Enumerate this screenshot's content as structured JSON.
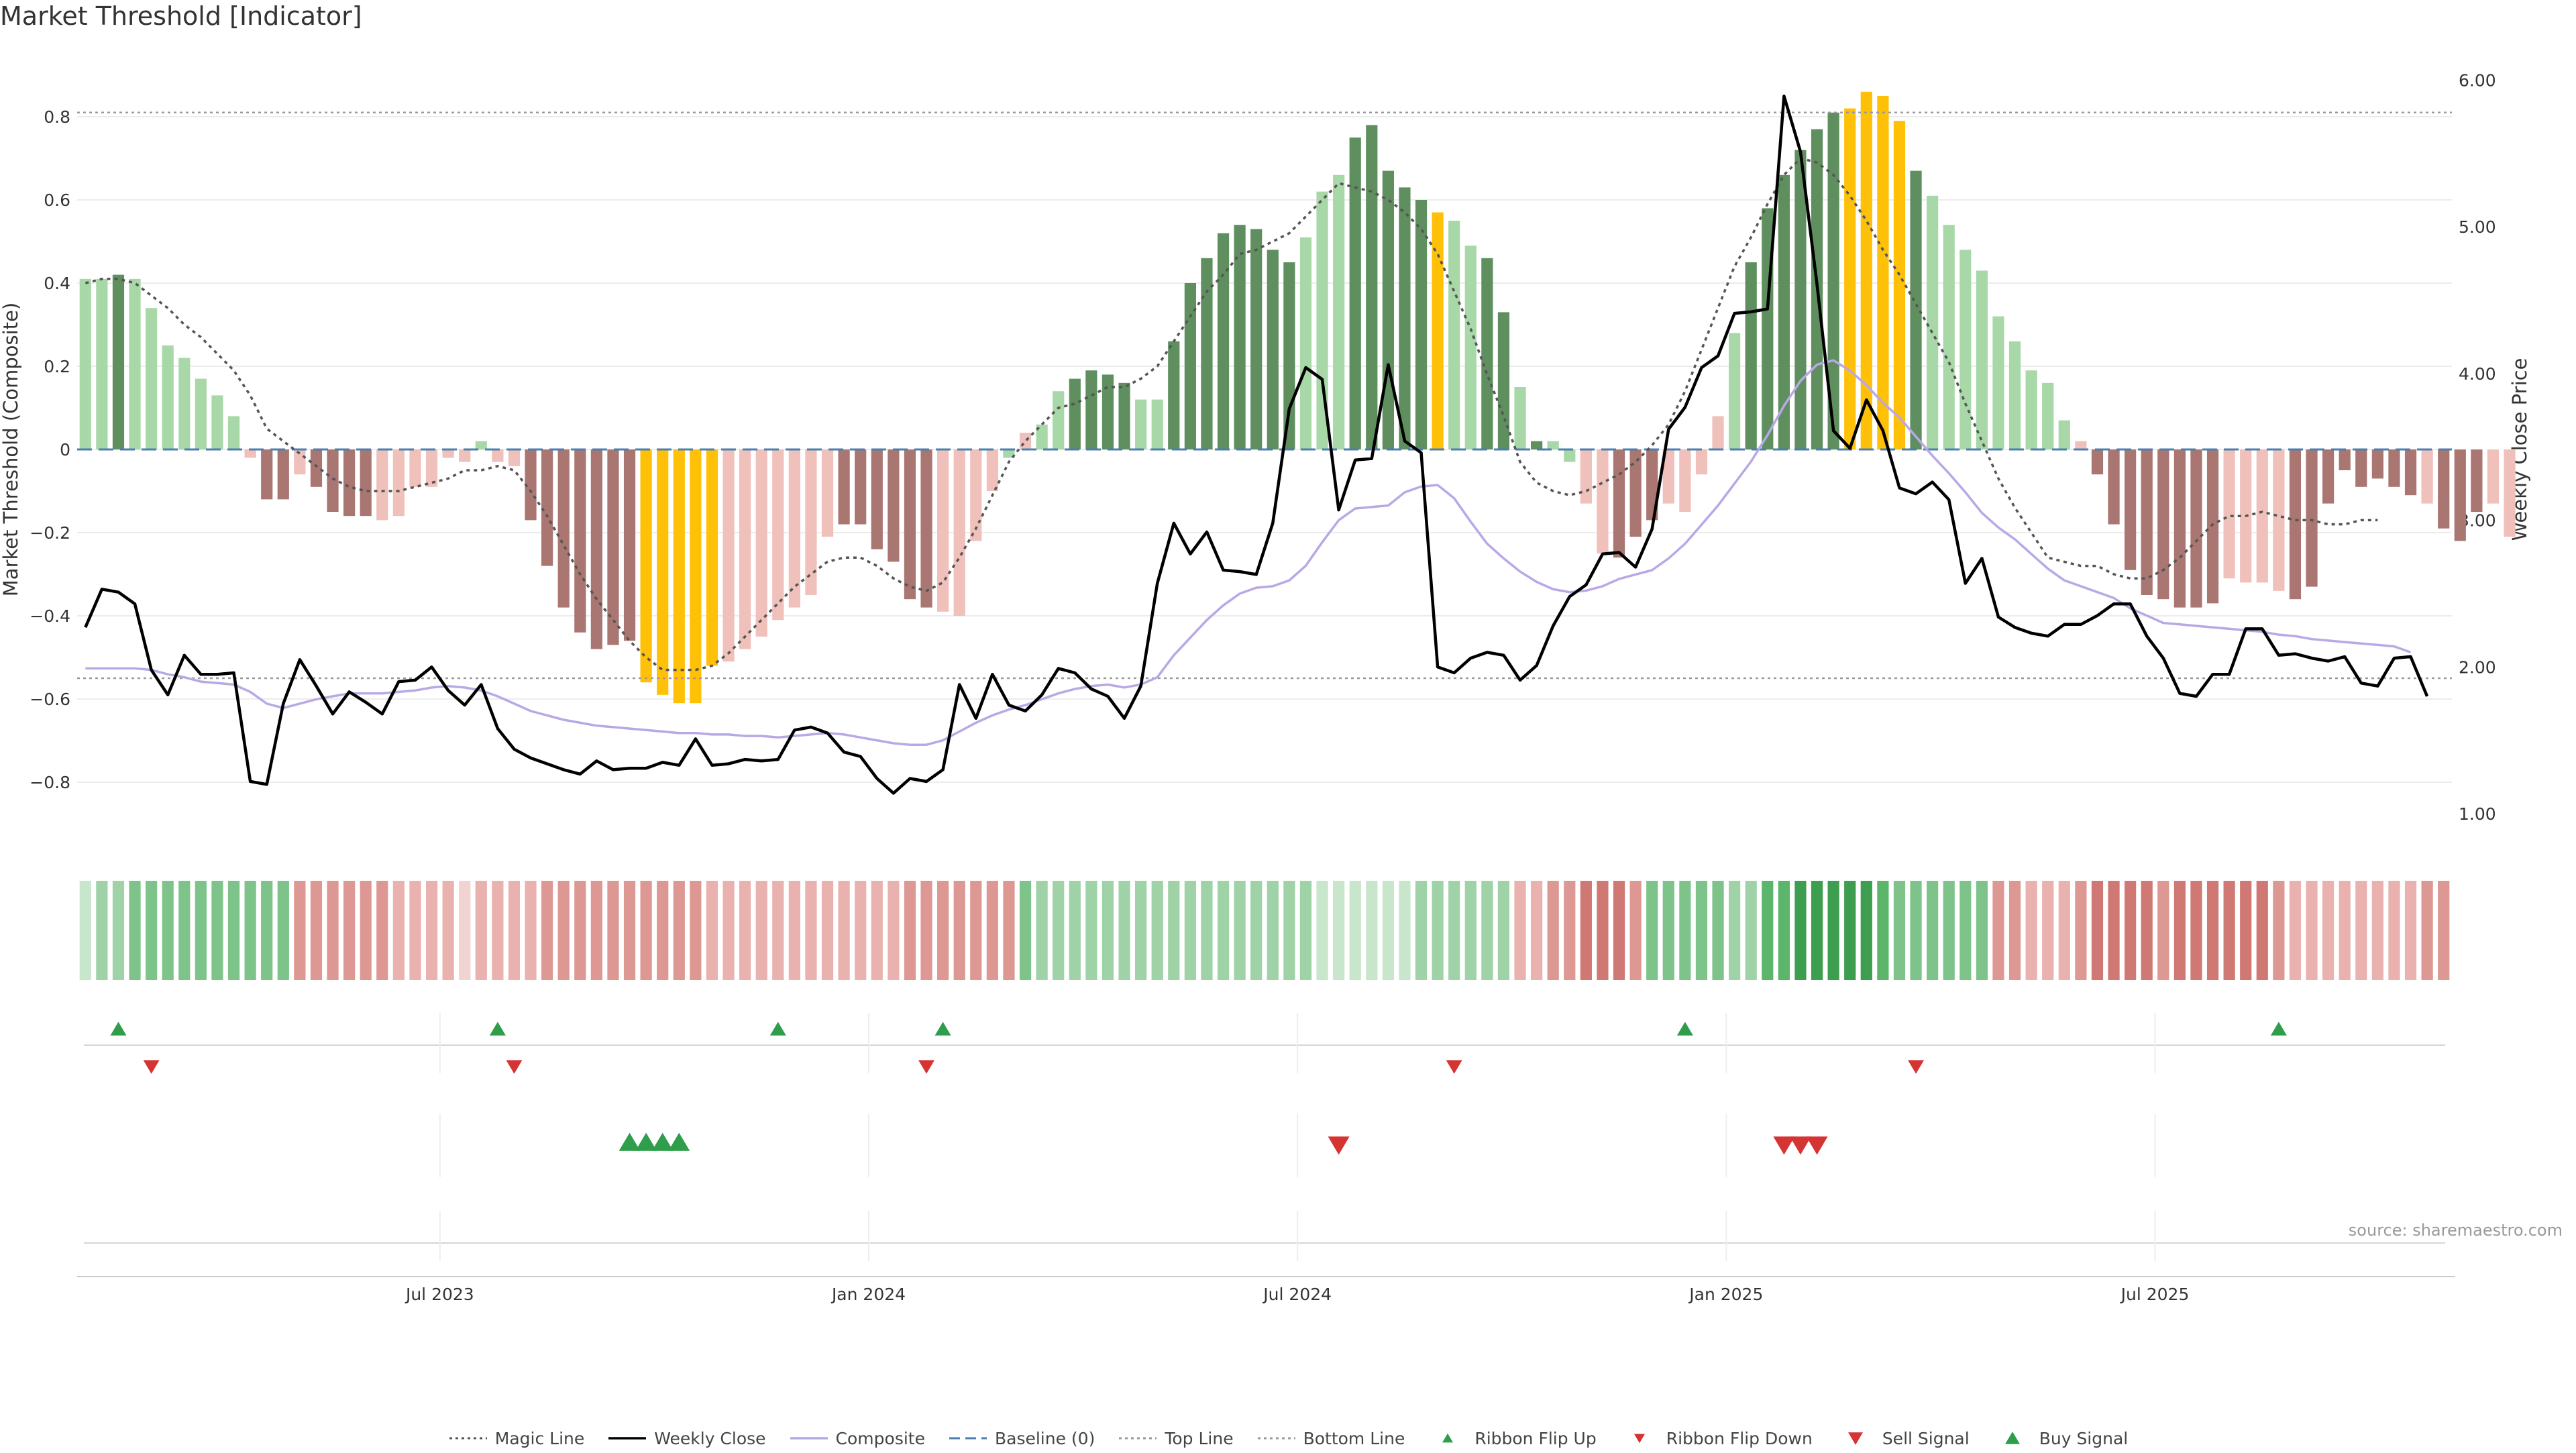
{
  "title": "Market Threshold [Indicator]",
  "source": "source: sharemaestro.com",
  "colors": {
    "dark_green": "#5f8f5f",
    "light_green": "#a8d8a8",
    "dark_red": "#a97672",
    "light_red": "#f0c0bb",
    "gold": "#ffc107",
    "weekly_close": "#000000",
    "composite": "#b9a8e6",
    "magic_line": "#555555",
    "baseline": "#4a7fb0",
    "buy": "#2e9e4a",
    "sell": "#d63333"
  },
  "chart_data": {
    "type": "bar",
    "ylabel_left": "Market Threshold (Composite)",
    "ylabel_right": "Weekly Close Price",
    "ylim_left": [
      -0.95,
      0.95
    ],
    "ylim_right": [
      0.8,
      6.2
    ],
    "left_ticks": [
      "0.8",
      "0.6",
      "0.4",
      "0.2",
      "0",
      "−0.2",
      "−0.4",
      "−0.6",
      "−0.8"
    ],
    "right_ticks": [
      "6.00",
      "5.00",
      "4.00",
      "3.00",
      "2.00",
      "1.00"
    ],
    "x_ticks": [
      "Jul 2023",
      "Jan 2024",
      "Jul 2024",
      "Jan 2025",
      "Jul 2025"
    ],
    "x_tick_week": [
      21.5,
      47.5,
      73.5,
      99.5,
      125.5
    ],
    "top_line": 0.81,
    "bottom_line": -0.55,
    "weeks": 144,
    "bar_values": [
      0.41,
      0.41,
      0.42,
      0.41,
      0.34,
      0.25,
      0.22,
      0.17,
      0.13,
      0.08,
      -0.02,
      -0.12,
      -0.12,
      -0.06,
      -0.09,
      -0.15,
      -0.16,
      -0.16,
      -0.17,
      -0.16,
      -0.09,
      -0.09,
      -0.02,
      -0.03,
      0.02,
      -0.03,
      -0.04,
      -0.17,
      -0.28,
      -0.38,
      -0.44,
      -0.48,
      -0.47,
      -0.46,
      -0.56,
      -0.59,
      -0.61,
      -0.61,
      -0.52,
      -0.51,
      -0.48,
      -0.45,
      -0.41,
      -0.38,
      -0.35,
      -0.21,
      -0.18,
      -0.18,
      -0.24,
      -0.27,
      -0.36,
      -0.38,
      -0.39,
      -0.4,
      -0.22,
      -0.1,
      -0.02,
      0.04,
      0.06,
      0.14,
      0.17,
      0.19,
      0.18,
      0.16,
      0.12,
      0.12,
      0.26,
      0.4,
      0.46,
      0.52,
      0.54,
      0.53,
      0.48,
      0.45,
      0.51,
      0.62,
      0.66,
      0.75,
      0.78,
      0.67,
      0.63,
      0.6,
      0.57,
      0.55,
      0.49,
      0.46,
      0.33,
      0.15,
      0.02,
      0.02,
      -0.03,
      -0.13,
      -0.25,
      -0.26,
      -0.21,
      -0.17,
      -0.13,
      -0.15,
      -0.06,
      0.08,
      0.28,
      0.45,
      0.58,
      0.66,
      0.72,
      0.77,
      0.81,
      0.82,
      0.86,
      0.85,
      0.79,
      0.67,
      0.61,
      0.54,
      0.48,
      0.43,
      0.32,
      0.26,
      0.19,
      0.16,
      0.07,
      0.02,
      -0.06,
      -0.18,
      -0.29,
      -0.35,
      -0.36,
      -0.38,
      -0.38,
      -0.37,
      -0.31,
      -0.32,
      -0.32,
      -0.34,
      -0.36,
      -0.33,
      -0.13,
      -0.05,
      -0.09,
      -0.07,
      -0.09,
      -0.11,
      -0.13,
      -0.19,
      -0.22,
      -0.15,
      -0.13,
      -0.21
    ],
    "bar_color_codes": "LLDLLLLLLLrRRrRRRRrrrrrrgrrRRRRRRRYYYYYrrrrrrrRRRRRRrrrrgrggDDDDggDDDDDDDDgggDDDDDYggDDgDggrrRRRrrrrgDDDDDDYYYYDgggggggggrRRRRRRRRrrrrRRRRRRRRrRRRr",
    "weekly_close": [
      2.27,
      2.53,
      2.51,
      2.43,
      1.98,
      1.81,
      2.08,
      1.95,
      1.95,
      1.96,
      1.22,
      1.2,
      1.75,
      2.05,
      1.87,
      1.68,
      1.83,
      1.76,
      1.68,
      1.9,
      1.91,
      2.0,
      1.84,
      1.74,
      1.88,
      1.58,
      1.44,
      1.38,
      1.34,
      1.3,
      1.27,
      1.36,
      1.3,
      1.31,
      1.31,
      1.35,
      1.33,
      1.51,
      1.33,
      1.34,
      1.37,
      1.36,
      1.37,
      1.57,
      1.59,
      1.55,
      1.42,
      1.39,
      1.24,
      1.14,
      1.24,
      1.22,
      1.3,
      1.88,
      1.65,
      1.95,
      1.74,
      1.7,
      1.81,
      1.99,
      1.96,
      1.85,
      1.8,
      1.65,
      1.87,
      2.57,
      2.98,
      2.77,
      2.92,
      2.66,
      2.65,
      2.63,
      2.98,
      3.76,
      4.04,
      3.96,
      3.07,
      3.41,
      3.42,
      4.06,
      3.54,
      3.46,
      2.0,
      1.96,
      2.06,
      2.1,
      2.08,
      1.91,
      2.01,
      2.28,
      2.48,
      2.56,
      2.77,
      2.78,
      2.68,
      2.94,
      3.62,
      3.77,
      4.04,
      4.12,
      4.41,
      4.42,
      4.44,
      5.89,
      5.51,
      4.61,
      3.61,
      3.49,
      3.82,
      3.61,
      3.22,
      3.18,
      3.26,
      3.14,
      2.57,
      2.74,
      2.34,
      2.27,
      2.23,
      2.21,
      2.29,
      2.29,
      2.35,
      2.43,
      2.43,
      2.21,
      2.06,
      1.82,
      1.8,
      1.95,
      1.95,
      2.26,
      2.26,
      2.08,
      2.09,
      2.06,
      2.04,
      2.07,
      1.89,
      1.87,
      2.06,
      2.07,
      1.8
    ],
    "composite": [
      1.99,
      1.99,
      1.99,
      1.99,
      1.98,
      1.95,
      1.93,
      1.9,
      1.89,
      1.88,
      1.83,
      1.75,
      1.72,
      1.75,
      1.78,
      1.8,
      1.82,
      1.82,
      1.82,
      1.83,
      1.84,
      1.86,
      1.87,
      1.86,
      1.84,
      1.8,
      1.75,
      1.7,
      1.67,
      1.64,
      1.62,
      1.6,
      1.59,
      1.58,
      1.57,
      1.56,
      1.55,
      1.55,
      1.54,
      1.54,
      1.53,
      1.53,
      1.52,
      1.53,
      1.54,
      1.55,
      1.54,
      1.52,
      1.5,
      1.48,
      1.47,
      1.47,
      1.5,
      1.56,
      1.62,
      1.67,
      1.71,
      1.74,
      1.78,
      1.82,
      1.85,
      1.87,
      1.88,
      1.86,
      1.88,
      1.93,
      2.08,
      2.2,
      2.32,
      2.42,
      2.5,
      2.54,
      2.55,
      2.59,
      2.69,
      2.85,
      3.0,
      3.08,
      3.09,
      3.1,
      3.19,
      3.23,
      3.24,
      3.15,
      2.99,
      2.84,
      2.74,
      2.65,
      2.58,
      2.53,
      2.51,
      2.52,
      2.55,
      2.6,
      2.63,
      2.66,
      2.74,
      2.84,
      2.97,
      3.1,
      3.25,
      3.4,
      3.58,
      3.78,
      3.95,
      4.06,
      4.09,
      4.02,
      3.92,
      3.8,
      3.7,
      3.57,
      3.44,
      3.32,
      3.19,
      3.05,
      2.95,
      2.87,
      2.77,
      2.67,
      2.59,
      2.55,
      2.51,
      2.47,
      2.4,
      2.35,
      2.3,
      2.29,
      2.28,
      2.27,
      2.26,
      2.25,
      2.24,
      2.22,
      2.21,
      2.19,
      2.18,
      2.17,
      2.16,
      2.15,
      2.14,
      2.1
    ],
    "magic_line": [
      0.4,
      0.41,
      0.41,
      0.4,
      0.37,
      0.34,
      0.3,
      0.27,
      0.23,
      0.19,
      0.13,
      0.05,
      0.02,
      -0.01,
      -0.04,
      -0.07,
      -0.09,
      -0.1,
      -0.1,
      -0.1,
      -0.09,
      -0.08,
      -0.07,
      -0.05,
      -0.05,
      -0.04,
      -0.05,
      -0.1,
      -0.16,
      -0.23,
      -0.3,
      -0.36,
      -0.41,
      -0.46,
      -0.5,
      -0.53,
      -0.53,
      -0.53,
      -0.52,
      -0.49,
      -0.45,
      -0.41,
      -0.37,
      -0.33,
      -0.3,
      -0.27,
      -0.26,
      -0.26,
      -0.28,
      -0.31,
      -0.33,
      -0.34,
      -0.32,
      -0.26,
      -0.19,
      -0.11,
      -0.03,
      0.02,
      0.06,
      0.1,
      0.11,
      0.13,
      0.15,
      0.15,
      0.17,
      0.2,
      0.26,
      0.32,
      0.38,
      0.42,
      0.47,
      0.48,
      0.5,
      0.52,
      0.56,
      0.6,
      0.64,
      0.63,
      0.62,
      0.6,
      0.57,
      0.53,
      0.47,
      0.38,
      0.29,
      0.18,
      0.08,
      -0.03,
      -0.08,
      -0.1,
      -0.11,
      -0.1,
      -0.08,
      -0.06,
      -0.03,
      0.01,
      0.06,
      0.14,
      0.24,
      0.34,
      0.44,
      0.51,
      0.59,
      0.66,
      0.7,
      0.69,
      0.66,
      0.61,
      0.55,
      0.48,
      0.42,
      0.35,
      0.28,
      0.21,
      0.11,
      0.02,
      -0.07,
      -0.14,
      -0.2,
      -0.26,
      -0.27,
      -0.28,
      -0.28,
      -0.3,
      -0.31,
      -0.31,
      -0.29,
      -0.26,
      -0.22,
      -0.18,
      -0.16,
      -0.16,
      -0.15,
      -0.16,
      -0.17,
      -0.17,
      -0.18,
      -0.18,
      -0.17,
      -0.17
    ],
    "ribbon_codes": "1223333333333333333222212222333333333322222222222233333333222222222222222221111112222222233444333333224455555433333333222344443444444322222222",
    "ribbon_up_weeks": [
      2,
      25,
      42,
      52,
      97,
      133
    ],
    "ribbon_down_weeks": [
      4,
      26,
      51,
      83,
      111
    ],
    "buy_signal_weeks": [
      33,
      34,
      35,
      36
    ],
    "sell_signal_weeks": [
      76,
      103,
      104,
      105
    ],
    "legend": [
      {
        "label": "Magic Line",
        "kind": "dotted",
        "color": "#555555"
      },
      {
        "label": "Weekly Close",
        "kind": "solid",
        "color": "#000000"
      },
      {
        "label": "Composite",
        "kind": "solid",
        "color": "#b9a8e6"
      },
      {
        "label": "Baseline (0)",
        "kind": "dashed",
        "color": "#4a7fb0"
      },
      {
        "label": "Top Line",
        "kind": "dotted",
        "color": "#999999"
      },
      {
        "label": "Bottom Line",
        "kind": "dotted",
        "color": "#999999"
      },
      {
        "label": "Ribbon Flip Up",
        "kind": "tri-up",
        "color": "#2e9e4a"
      },
      {
        "label": "Ribbon Flip Down",
        "kind": "tri-down",
        "color": "#d63333"
      },
      {
        "label": "Sell Signal",
        "kind": "tri-down-big",
        "color": "#d63333"
      },
      {
        "label": "Buy Signal",
        "kind": "tri-up-big",
        "color": "#2e9e4a"
      }
    ]
  }
}
